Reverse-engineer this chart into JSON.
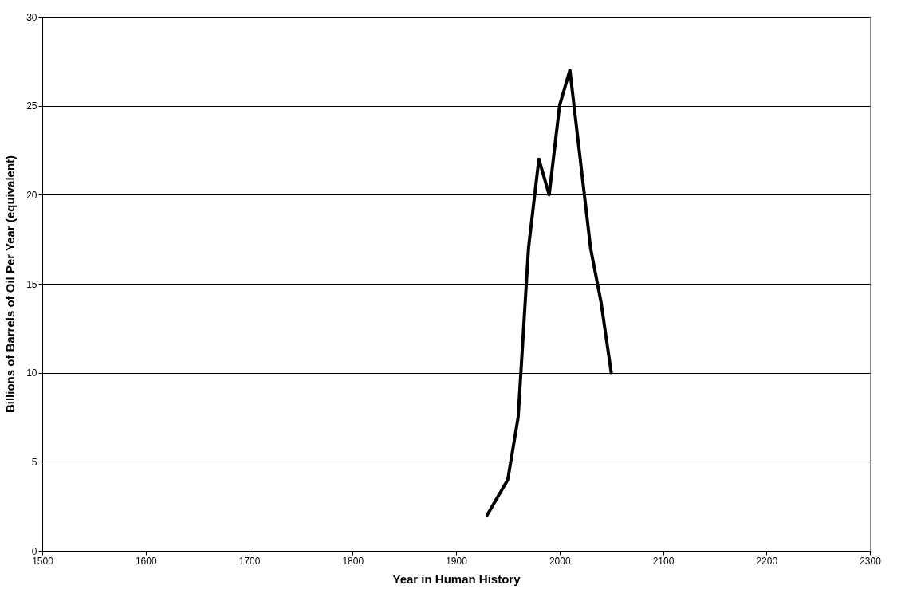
{
  "chart_data": {
    "type": "line",
    "xlabel": "Year in Human History",
    "ylabel": "Billions of Barrels of Oil Per Year (equivalent)",
    "x": [
      1930,
      1950,
      1960,
      1970,
      1980,
      1990,
      2000,
      2010,
      2020,
      2030,
      2040,
      2050
    ],
    "series": [
      {
        "color": "#000000",
        "values": [
          2,
          4,
          7.5,
          17,
          22,
          20,
          25,
          27,
          22,
          17,
          14,
          10
        ]
      }
    ],
    "xlim": [
      1500,
      2300
    ],
    "xticks": [
      1500,
      1600,
      1700,
      1800,
      1900,
      2000,
      2100,
      2200,
      2300
    ],
    "ylim": [
      0,
      30
    ],
    "yticks": [
      0,
      5,
      10,
      15,
      20,
      25,
      30
    ],
    "grid": "y",
    "line_style": "solid"
  }
}
